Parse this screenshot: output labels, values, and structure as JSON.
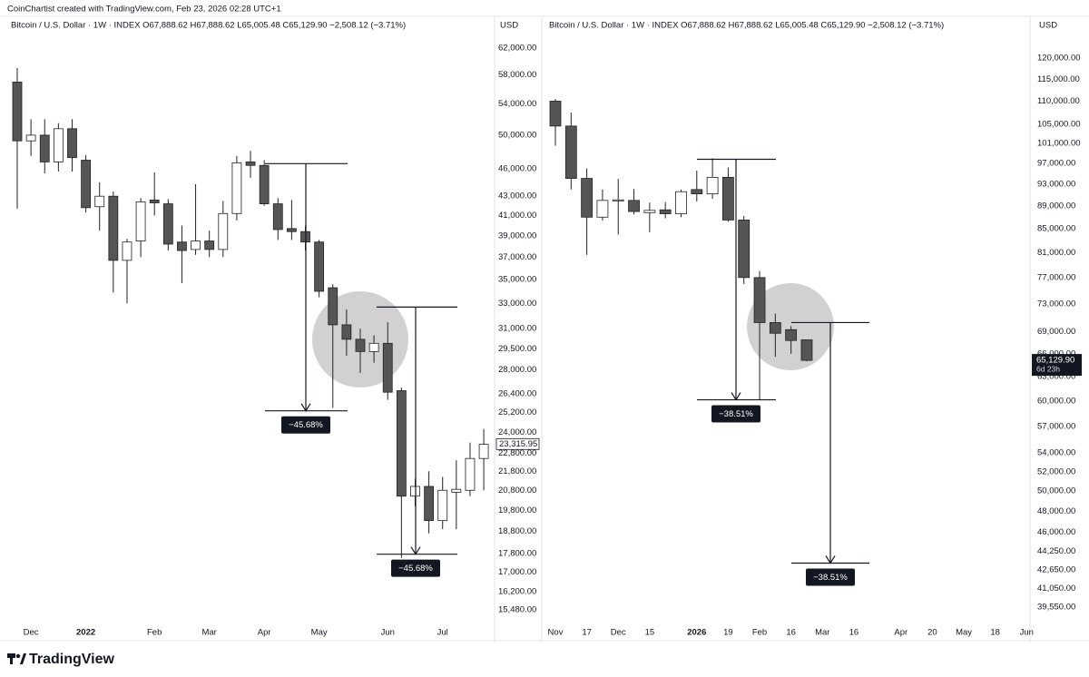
{
  "header": "CoinChartist created with TradingView.com, Feb 23, 2026 02:28 UTC+1",
  "logo": "TradingView",
  "chart_data": [
    {
      "type": "candlestick",
      "title": "Bitcoin / U.S. Dollar · 1W · INDEX  O67,888.62  H67,888.62  L65,005.48  C65,129.90  −2,508.12 (−3.71%)",
      "currency": "USD",
      "log_scale": true,
      "bull_color": "#ffffff",
      "bear_color": "#555555",
      "edge_color": "#222222",
      "categories": [
        null,
        "Dec",
        null,
        null,
        null,
        "2022",
        null,
        null,
        null,
        null,
        "Feb",
        null,
        null,
        null,
        "Mar",
        null,
        null,
        null,
        "Apr",
        null,
        null,
        null,
        "May",
        null,
        null,
        null,
        null,
        "Jun",
        null,
        null,
        null,
        "Jul",
        null,
        null,
        null
      ],
      "open": [
        57000,
        49300,
        50000,
        46800,
        50800,
        47000,
        41900,
        43000,
        36700,
        38500,
        42600,
        42200,
        38400,
        37700,
        38500,
        37700,
        41200,
        46800,
        46400,
        42200,
        39700,
        39400,
        38400,
        34300,
        31300,
        30200,
        29300,
        29900,
        26600,
        20500,
        21000,
        19300,
        20700,
        20800,
        22500
      ],
      "high": [
        59000,
        52000,
        52000,
        51500,
        52000,
        47600,
        44500,
        43500,
        38700,
        42800,
        45600,
        42700,
        40000,
        44300,
        39500,
        42500,
        47500,
        48100,
        47000,
        42800,
        42600,
        40000,
        38600,
        34600,
        32500,
        31000,
        30500,
        31500,
        26800,
        21400,
        21800,
        21500,
        22400,
        23400,
        24200
      ],
      "low": [
        41700,
        47500,
        45500,
        45700,
        45700,
        41300,
        39500,
        33900,
        33000,
        37000,
        41000,
        37600,
        34700,
        37200,
        37000,
        37000,
        40500,
        45000,
        42000,
        38600,
        38600,
        37600,
        33500,
        25500,
        29000,
        27800,
        28500,
        26000,
        17600,
        20000,
        18700,
        18900,
        18900,
        20500,
        20800
      ],
      "close": [
        49300,
        50000,
        46800,
        50800,
        47300,
        41800,
        43000,
        36700,
        38400,
        42400,
        42300,
        38200,
        37600,
        38500,
        37700,
        41200,
        46700,
        46400,
        42200,
        39600,
        39400,
        38400,
        34000,
        31300,
        30200,
        29300,
        29900,
        26500,
        20500,
        21000,
        19300,
        20800,
        20850,
        22500,
        23300
      ],
      "ylim": [
        14870,
        67500
      ],
      "yticks": [
        {
          "value": 62000,
          "label": "62,000.00"
        },
        {
          "value": 58000,
          "label": "58,000.00"
        },
        {
          "value": 54000,
          "label": "54,000.00"
        },
        {
          "value": 50000,
          "label": "50,000.00"
        },
        {
          "value": 46000,
          "label": "46,000.00"
        },
        {
          "value": 43000,
          "label": "43,000.00"
        },
        {
          "value": 41000,
          "label": "41,000.00"
        },
        {
          "value": 39000,
          "label": "39,000.00"
        },
        {
          "value": 37000,
          "label": "37,000.00"
        },
        {
          "value": 35000,
          "label": "35,000.00"
        },
        {
          "value": 33000,
          "label": "33,000.00"
        },
        {
          "value": 31000,
          "label": "31,000.00"
        },
        {
          "value": 29500,
          "label": "29,500.00"
        },
        {
          "value": 28000,
          "label": "28,000.00"
        },
        {
          "value": 26400,
          "label": "26,400.00"
        },
        {
          "value": 25200,
          "label": "25,200.00"
        },
        {
          "value": 24000,
          "label": "24,000.00"
        },
        {
          "value": 22800,
          "label": "22,800.00"
        },
        {
          "value": 21800,
          "label": "21,800.00"
        },
        {
          "value": 20800,
          "label": "20,800.00"
        },
        {
          "value": 19800,
          "label": "19,800.00"
        },
        {
          "value": 18800,
          "label": "18,800.00"
        },
        {
          "value": 17800,
          "label": "17,800.00"
        },
        {
          "value": 17000,
          "label": "17,000.00"
        },
        {
          "value": 16200,
          "label": "16,200.00"
        },
        {
          "value": 15480,
          "label": "15,480.00"
        }
      ],
      "last_price": {
        "value": 23315.95,
        "label": "23,315.95"
      },
      "measures": [
        {
          "label": "−45.68%",
          "start": 46600,
          "end": 25310
        },
        {
          "label": "−45.68%",
          "start": 32700,
          "end": 17763
        }
      ]
    },
    {
      "type": "candlestick",
      "title": "Bitcoin / U.S. Dollar · 1W · INDEX  O67,888.62  H67,888.62  L65,005.48  C65,129.90  −2,508.12 (−3.71%)",
      "currency": "USD",
      "log_scale": true,
      "bull_color": "#ffffff",
      "bear_color": "#555555",
      "edge_color": "#222222",
      "categories": [
        "Nov",
        null,
        "17",
        null,
        "Dec",
        null,
        "15",
        null,
        null,
        "2026",
        null,
        "19",
        null,
        "Feb",
        null,
        "16",
        null,
        "Mar",
        null,
        "16",
        null,
        null,
        "Apr",
        null,
        "20",
        null,
        "May",
        null,
        "18",
        null,
        "Jun"
      ],
      "open": [
        110000,
        104600,
        94100,
        87000,
        89900,
        90000,
        87800,
        88300,
        87600,
        92000,
        91200,
        94300,
        86500,
        77000,
        70300,
        69300,
        67888.62,
        null,
        null,
        null,
        null,
        null,
        null,
        null,
        null,
        null,
        null,
        null,
        null,
        null,
        null
      ],
      "high": [
        110500,
        107500,
        96000,
        92000,
        94000,
        92100,
        89600,
        89700,
        92000,
        95600,
        98000,
        96200,
        87200,
        78000,
        71600,
        69800,
        67888.62,
        null,
        null,
        null,
        null,
        null,
        null,
        null,
        null,
        null,
        null,
        null,
        null,
        null,
        null
      ],
      "low": [
        100500,
        92000,
        80600,
        86400,
        84000,
        87500,
        84400,
        86800,
        87000,
        89800,
        90300,
        86200,
        76000,
        60100,
        65600,
        66000,
        65005.48,
        null,
        null,
        null,
        null,
        null,
        null,
        null,
        null,
        null,
        null,
        null,
        null,
        null,
        null
      ],
      "close": [
        104600,
        94100,
        87000,
        90000,
        90100,
        88000,
        88200,
        87600,
        91600,
        91200,
        94300,
        86500,
        77000,
        70300,
        68800,
        67800,
        65129.9,
        null,
        null,
        null,
        null,
        null,
        null,
        null,
        null,
        null,
        null,
        null,
        null,
        null,
        null
      ],
      "ylim": [
        38050,
        131300
      ],
      "yticks": [
        {
          "value": 120000,
          "label": "120,000.00"
        },
        {
          "value": 115000,
          "label": "115,000.00"
        },
        {
          "value": 110000,
          "label": "110,000.00"
        },
        {
          "value": 105000,
          "label": "105,000.00"
        },
        {
          "value": 101000,
          "label": "101,000.00"
        },
        {
          "value": 97000,
          "label": "97,000.00"
        },
        {
          "value": 93000,
          "label": "93,000.00"
        },
        {
          "value": 89000,
          "label": "89,000.00"
        },
        {
          "value": 85000,
          "label": "85,000.00"
        },
        {
          "value": 81000,
          "label": "81,000.00"
        },
        {
          "value": 77000,
          "label": "77,000.00"
        },
        {
          "value": 73000,
          "label": "73,000.00"
        },
        {
          "value": 69000,
          "label": "69,000.00"
        },
        {
          "value": 66000,
          "label": "66,000.00"
        },
        {
          "value": 63000,
          "label": "63,000.00"
        },
        {
          "value": 60000,
          "label": "60,000.00"
        },
        {
          "value": 57000,
          "label": "57,000.00"
        },
        {
          "value": 54000,
          "label": "54,000.00"
        },
        {
          "value": 52000,
          "label": "52,000.00"
        },
        {
          "value": 50000,
          "label": "50,000.00"
        },
        {
          "value": 48000,
          "label": "48,000.00"
        },
        {
          "value": 46000,
          "label": "46,000.00"
        },
        {
          "value": 44250,
          "label": "44,250.00"
        },
        {
          "value": 42650,
          "label": "42,650.00"
        },
        {
          "value": 41050,
          "label": "41,050.00"
        },
        {
          "value": 39550,
          "label": "39,550.00"
        }
      ],
      "last_price": {
        "value": 65129.9,
        "label": "65,129.90"
      },
      "countdown": "6d 23h",
      "measures": [
        {
          "label": "−38.51%",
          "start": 97800,
          "end": 60137
        },
        {
          "label": "−38.51%",
          "start": 70300,
          "end": 43227
        }
      ]
    }
  ]
}
